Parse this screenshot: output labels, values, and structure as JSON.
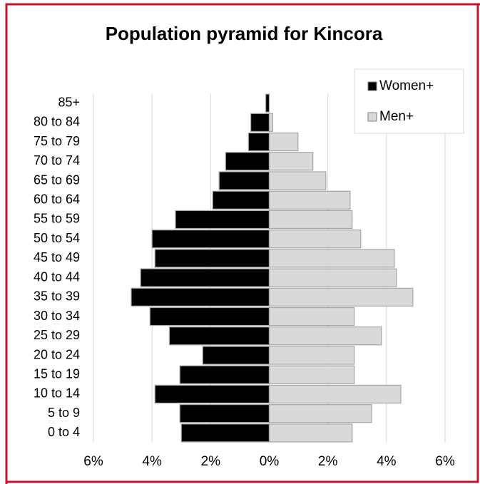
{
  "chart_data": {
    "type": "pyramid",
    "title": "Population pyramid for Kincora",
    "categories": [
      "85+",
      "80 to 84",
      "75 to 79",
      "70 to 74",
      "65 to 69",
      "60 to 64",
      "55 to 59",
      "50 to 54",
      "45 to 49",
      "40 to 44",
      "35 to 39",
      "30 to 34",
      "25 to 29",
      "20 to 24",
      "15 to 19",
      "10 to 14",
      "5 to 9",
      "0 to 4"
    ],
    "series": [
      {
        "name": "Women+",
        "color": "#000000",
        "values": [
          -0.12,
          -0.63,
          -0.71,
          -1.49,
          -1.71,
          -1.93,
          -3.2,
          -4.0,
          -3.9,
          -4.39,
          -4.71,
          -4.07,
          -3.41,
          -2.27,
          -3.05,
          -3.9,
          -3.05,
          -3.0
        ]
      },
      {
        "name": "Men+",
        "color": "#d9d9d9",
        "values": [
          0,
          0.12,
          0.98,
          1.49,
          1.93,
          2.76,
          2.83,
          3.12,
          4.27,
          4.34,
          4.9,
          2.9,
          3.83,
          2.9,
          2.9,
          4.49,
          3.49,
          2.83
        ]
      }
    ],
    "xlim": [
      -6,
      6
    ],
    "xticks": [
      {
        "value": -6,
        "label": "6%"
      },
      {
        "value": -4,
        "label": "4%"
      },
      {
        "value": -2,
        "label": "2%"
      },
      {
        "value": 0,
        "label": "0%"
      },
      {
        "value": 2,
        "label": "2%"
      },
      {
        "value": 4,
        "label": "4%"
      },
      {
        "value": 6,
        "label": "6%"
      }
    ],
    "grid": true,
    "legend": "top-right"
  }
}
